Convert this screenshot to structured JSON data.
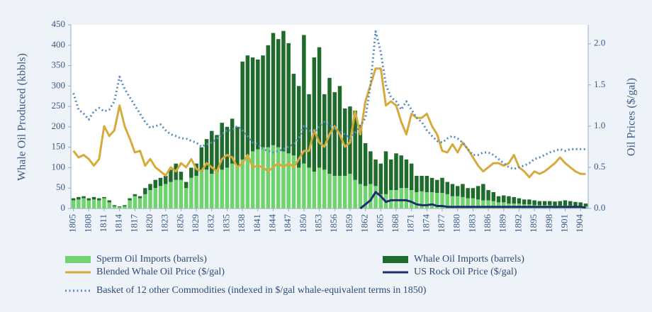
{
  "chart_data": {
    "type": "combo",
    "y_label": "Whale Oil Produced (kbbls)",
    "y2_label": "Oil Prices ($/gal)",
    "x": [
      1805,
      1806,
      1807,
      1808,
      1809,
      1810,
      1811,
      1812,
      1813,
      1814,
      1815,
      1816,
      1817,
      1818,
      1819,
      1820,
      1821,
      1822,
      1823,
      1824,
      1825,
      1826,
      1827,
      1828,
      1829,
      1830,
      1831,
      1832,
      1833,
      1834,
      1835,
      1836,
      1837,
      1838,
      1839,
      1840,
      1841,
      1842,
      1843,
      1844,
      1845,
      1846,
      1847,
      1848,
      1849,
      1850,
      1851,
      1852,
      1853,
      1854,
      1855,
      1856,
      1857,
      1858,
      1859,
      1860,
      1861,
      1862,
      1863,
      1864,
      1865,
      1866,
      1867,
      1868,
      1869,
      1870,
      1871,
      1872,
      1873,
      1874,
      1875,
      1876,
      1877,
      1878,
      1879,
      1880,
      1881,
      1882,
      1883,
      1884,
      1885,
      1886,
      1887,
      1888,
      1889,
      1890,
      1891,
      1892,
      1893,
      1894,
      1895,
      1896,
      1897,
      1898,
      1899,
      1900,
      1901,
      1902,
      1903,
      1904,
      1905
    ],
    "xlim": [
      1804.5,
      1905.5
    ],
    "xticks": [
      1805,
      1808,
      1811,
      1814,
      1817,
      1820,
      1823,
      1826,
      1829,
      1832,
      1835,
      1838,
      1841,
      1844,
      1847,
      1850,
      1853,
      1856,
      1859,
      1862,
      1865,
      1868,
      1871,
      1874,
      1877,
      1880,
      1883,
      1886,
      1889,
      1892,
      1895,
      1898,
      1901,
      1904
    ],
    "ylim": [
      0,
      450
    ],
    "yticks": [
      0,
      50,
      100,
      150,
      200,
      250,
      300,
      350,
      400,
      450
    ],
    "y2lim": [
      0,
      2.23
    ],
    "y2ticks": [
      {
        "value": 0,
        "label": "0.0"
      },
      0.5,
      {
        "value": 1,
        "label": "1.0"
      },
      1.5,
      {
        "value": 2,
        "label": "2.0"
      }
    ],
    "series": [
      {
        "name": "Sperm Oil Imports (barrels)",
        "type": "bar",
        "stack": true,
        "color": "#6fd46f",
        "values": [
          20,
          22,
          25,
          20,
          22,
          20,
          25,
          15,
          5,
          3,
          5,
          20,
          30,
          25,
          35,
          45,
          50,
          55,
          60,
          65,
          70,
          70,
          50,
          75,
          80,
          90,
          95,
          85,
          90,
          95,
          100,
          110,
          105,
          120,
          130,
          140,
          145,
          150,
          150,
          155,
          150,
          140,
          135,
          130,
          100,
          110,
          100,
          90,
          100,
          95,
          85,
          80,
          80,
          80,
          85,
          70,
          60,
          55,
          60,
          55,
          35,
          35,
          45,
          45,
          50,
          50,
          45,
          40,
          42,
          40,
          40,
          38,
          38,
          35,
          30,
          30,
          28,
          25,
          25,
          22,
          20,
          20,
          18,
          15,
          15,
          12,
          12,
          12,
          10,
          10,
          8,
          8,
          8,
          8,
          7,
          7,
          7,
          7,
          6,
          6,
          5
        ]
      },
      {
        "name": "Whale Oil Imports (barrels)",
        "type": "bar",
        "stack": true,
        "color": "#1f6b2b",
        "values": [
          5,
          6,
          5,
          5,
          6,
          5,
          3,
          5,
          3,
          2,
          3,
          5,
          5,
          5,
          15,
          15,
          20,
          20,
          20,
          30,
          40,
          20,
          15,
          25,
          30,
          60,
          75,
          105,
          90,
          115,
          100,
          110,
          95,
          240,
          245,
          230,
          220,
          225,
          250,
          275,
          265,
          295,
          270,
          200,
          200,
          315,
          180,
          280,
          295,
          185,
          235,
          205,
          220,
          165,
          165,
          170,
          145,
          105,
          80,
          65,
          75,
          105,
          75,
          90,
          80,
          70,
          65,
          40,
          38,
          40,
          35,
          32,
          37,
          30,
          30,
          25,
          32,
          25,
          25,
          33,
          40,
          25,
          22,
          15,
          17,
          18,
          16,
          13,
          12,
          12,
          12,
          10,
          10,
          10,
          10,
          11,
          13,
          11,
          10,
          9,
          7
        ]
      },
      {
        "name": "Blended Whale Oil Price ($/gal)",
        "type": "line",
        "axis": "y2",
        "color": "#d6ab3c",
        "width": 3,
        "values": [
          0.7,
          0.62,
          0.65,
          0.6,
          0.52,
          0.6,
          1.0,
          0.88,
          0.95,
          1.25,
          1.0,
          0.85,
          0.68,
          0.7,
          0.52,
          0.6,
          0.5,
          0.45,
          0.4,
          0.5,
          0.45,
          0.55,
          0.5,
          0.6,
          0.48,
          0.45,
          0.55,
          0.5,
          0.45,
          0.6,
          0.65,
          0.62,
          0.5,
          0.55,
          0.65,
          0.5,
          0.52,
          0.5,
          0.45,
          0.5,
          0.55,
          0.5,
          0.55,
          0.5,
          0.6,
          0.7,
          0.7,
          0.95,
          0.8,
          0.75,
          0.9,
          1.0,
          0.9,
          0.75,
          0.8,
          1.18,
          0.9,
          1.3,
          1.5,
          1.7,
          1.7,
          1.25,
          1.3,
          1.25,
          1.05,
          0.9,
          1.15,
          1.1,
          1.1,
          1.15,
          1.0,
          0.9,
          0.7,
          0.68,
          0.78,
          0.68,
          0.8,
          0.72,
          0.62,
          0.52,
          0.45,
          0.5,
          0.55,
          0.55,
          0.52,
          0.55,
          0.65,
          0.5,
          0.45,
          0.38,
          0.45,
          0.42,
          0.45,
          0.5,
          0.55,
          0.62,
          0.55,
          0.5,
          0.45,
          0.42,
          0.42
        ]
      },
      {
        "name": "US Rock Oil Price ($/gal)",
        "type": "line",
        "axis": "y2",
        "color": "#1f2d6e",
        "width": 3,
        "values": [
          null,
          null,
          null,
          null,
          null,
          null,
          null,
          null,
          null,
          null,
          null,
          null,
          null,
          null,
          null,
          null,
          null,
          null,
          null,
          null,
          null,
          null,
          null,
          null,
          null,
          null,
          null,
          null,
          null,
          null,
          null,
          null,
          null,
          null,
          null,
          null,
          null,
          null,
          null,
          null,
          null,
          null,
          null,
          null,
          null,
          null,
          null,
          null,
          null,
          null,
          null,
          null,
          null,
          null,
          null,
          null,
          0.0,
          0.05,
          0.1,
          0.2,
          0.15,
          0.08,
          0.1,
          0.1,
          0.1,
          0.1,
          0.08,
          0.05,
          0.04,
          0.04,
          0.05,
          0.03,
          0.03,
          0.02,
          0.02,
          0.02,
          0.02,
          0.02,
          0.02,
          0.02,
          0.02,
          0.02,
          0.02,
          0.02,
          0.02,
          0.02,
          0.02,
          0.02,
          0.02,
          0.02,
          0.02,
          0.02,
          0.02,
          0.02,
          0.02,
          0.02,
          0.02,
          0.02,
          0.02,
          0.02,
          0.01
        ]
      },
      {
        "name": "Basket of 12 other Commodities (indexed in $/gal whale-equivalent terms in 1850)",
        "type": "line",
        "axis": "y2",
        "color": "#5a8cc2",
        "width": 3,
        "dash": "dotted",
        "values": [
          1.4,
          1.2,
          1.15,
          1.08,
          1.18,
          1.22,
          1.18,
          1.2,
          1.3,
          1.6,
          1.45,
          1.35,
          1.25,
          1.15,
          1.05,
          0.98,
          1.0,
          1.02,
          0.95,
          0.9,
          0.88,
          0.85,
          0.85,
          0.82,
          0.8,
          0.75,
          0.78,
          0.8,
          0.85,
          0.9,
          0.95,
          0.95,
          1.0,
          0.95,
          0.88,
          0.8,
          0.78,
          0.72,
          0.7,
          0.68,
          0.7,
          0.72,
          0.75,
          0.78,
          0.85,
          1.0,
          0.95,
          0.92,
          1.0,
          1.05,
          1.02,
          0.98,
          0.95,
          0.9,
          0.85,
          0.92,
          1.0,
          1.1,
          1.5,
          2.15,
          1.9,
          1.5,
          1.35,
          1.3,
          1.2,
          1.3,
          1.2,
          1.1,
          1.05,
          0.95,
          0.88,
          0.82,
          0.8,
          0.85,
          0.88,
          0.85,
          0.8,
          0.72,
          0.65,
          0.65,
          0.68,
          0.68,
          0.65,
          0.6,
          0.55,
          0.5,
          0.48,
          0.5,
          0.52,
          0.55,
          0.6,
          0.62,
          0.65,
          0.68,
          0.7,
          0.72,
          0.7,
          0.72,
          0.72,
          0.72,
          0.72
        ]
      }
    ]
  }
}
